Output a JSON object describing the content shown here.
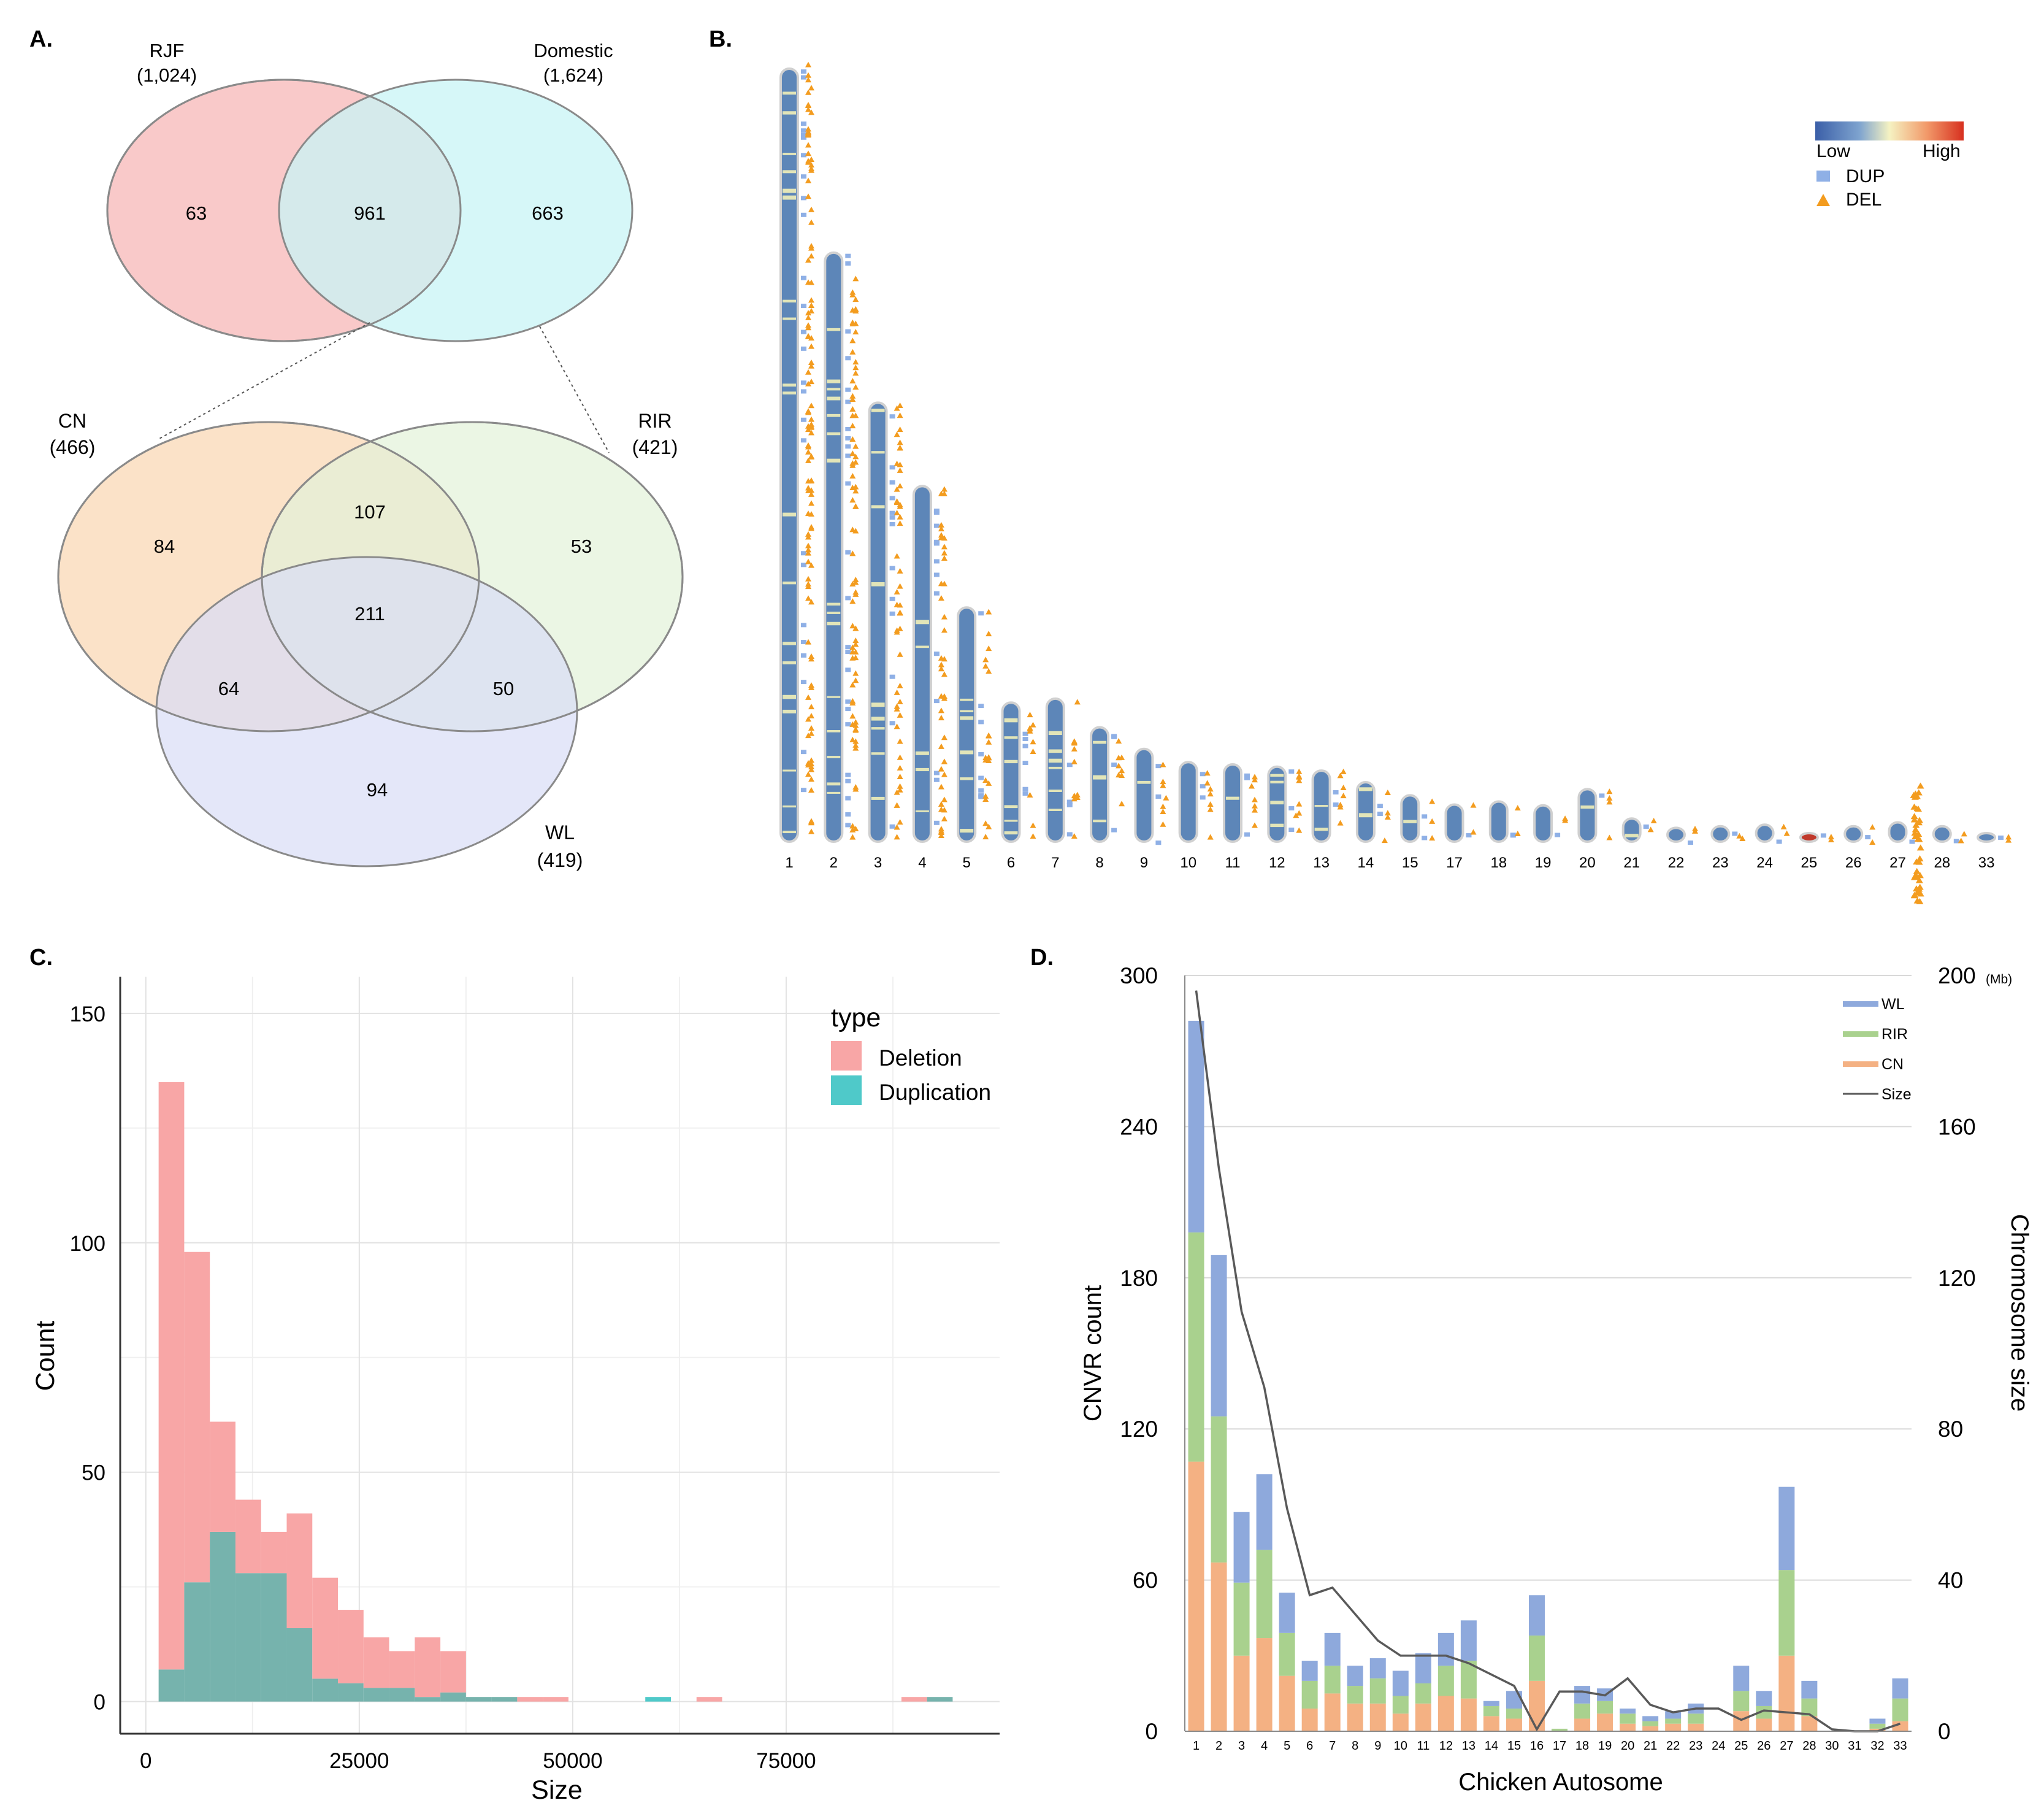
{
  "panels": {
    "a": {
      "label": "A.",
      "top_venn": {
        "sets": [
          {
            "name": "RJF",
            "count": "(1,024)",
            "color": "#f9c9c9"
          },
          {
            "name": "Domestic",
            "count": "(1,624)",
            "color": "#c8f4f6"
          }
        ],
        "regions": {
          "rjf_only": "63",
          "shared": "961",
          "domestic_only": "663"
        }
      },
      "bottom_venn": {
        "sets": [
          {
            "name": "CN",
            "count": "(466)",
            "color": "#fbe2c8"
          },
          {
            "name": "RIR",
            "count": "(421)",
            "color": "#e2f2d9"
          },
          {
            "name": "WL",
            "count": "(419)",
            "color": "#d9ddf7"
          }
        ],
        "regions": {
          "cn_only": "84",
          "cn_rir": "107",
          "rir_only": "53",
          "all": "211",
          "cn_wl": "64",
          "rir_wl": "50",
          "wl_only": "94"
        }
      }
    },
    "b": {
      "label": "B.",
      "legend": {
        "low": "Low",
        "high": "High",
        "dup": "DUP",
        "del": "DEL"
      },
      "colors": {
        "dup": "#8fb0e6",
        "del": "#f39c1f",
        "chrom": "#5d86b8",
        "band": "#f1efb8",
        "rim": "#d0d0d0"
      },
      "chromosomes": [
        {
          "label": "1",
          "length": 1.0,
          "dup": 0.5,
          "del": 1.0
        },
        {
          "label": "2",
          "length": 0.762,
          "dup": 0.6,
          "del": 0.9
        },
        {
          "label": "3",
          "length": 0.568,
          "dup": 0.45,
          "del": 0.8
        },
        {
          "label": "4",
          "length": 0.46,
          "dup": 0.55,
          "del": 0.8
        },
        {
          "label": "5",
          "length": 0.303,
          "dup": 0.5,
          "del": 0.6
        },
        {
          "label": "6",
          "length": 0.18,
          "dup": 0.6,
          "del": 0.5
        },
        {
          "label": "7",
          "length": 0.185,
          "dup": 0.4,
          "del": 0.5
        },
        {
          "label": "8",
          "length": 0.148,
          "dup": 0.5,
          "del": 0.5
        },
        {
          "label": "9",
          "length": 0.12,
          "dup": 0.4,
          "del": 0.5
        },
        {
          "label": "10",
          "length": 0.103,
          "dup": 0.6,
          "del": 0.6
        },
        {
          "label": "11",
          "length": 0.1,
          "dup": 0.6,
          "del": 0.6
        },
        {
          "label": "12",
          "length": 0.097,
          "dup": 0.5,
          "del": 0.7
        },
        {
          "label": "13",
          "length": 0.092,
          "dup": 0.5,
          "del": 0.7
        },
        {
          "label": "14",
          "length": 0.077,
          "dup": 0.5,
          "del": 0.4
        },
        {
          "label": "15",
          "length": 0.06,
          "dup": 0.5,
          "del": 0.5
        },
        {
          "label": "17",
          "length": 0.048,
          "dup": 0.3,
          "del": 0.3
        },
        {
          "label": "18",
          "length": 0.052,
          "dup": 0.6,
          "del": 0.4
        },
        {
          "label": "19",
          "length": 0.047,
          "dup": 0.5,
          "del": 0.4
        },
        {
          "label": "20",
          "length": 0.068,
          "dup": 0.4,
          "del": 0.5
        },
        {
          "label": "21",
          "length": 0.03,
          "dup": 0.3,
          "del": 0.3
        },
        {
          "label": "22",
          "length": 0.018,
          "dup": 0.3,
          "del": 0.3
        },
        {
          "label": "23",
          "length": 0.02,
          "dup": 0.3,
          "del": 0.3
        },
        {
          "label": "24",
          "length": 0.022,
          "dup": 0.3,
          "del": 0.3
        },
        {
          "label": "25",
          "length": 0.01,
          "dup": 0.3,
          "del": 0.4
        },
        {
          "label": "26",
          "length": 0.02,
          "dup": 0.4,
          "del": 0.4
        },
        {
          "label": "27",
          "length": 0.025,
          "dup": 0.5,
          "del": 1.0
        },
        {
          "label": "28",
          "length": 0.02,
          "dup": 0.5,
          "del": 0.4
        },
        {
          "label": "33",
          "length": 0.006,
          "dup": 0.3,
          "del": 0.3
        }
      ]
    },
    "c": {
      "label": "C.",
      "legend_title": "type",
      "colors": {
        "deletion": "#f8a6a6",
        "duplication": "#4fc9c9",
        "overlap": "#76b3ad"
      }
    },
    "d": {
      "label": "D.",
      "right_unit": "(Mb)",
      "colors": {
        "WL": "#8ea9dc",
        "RIR": "#a9d18e",
        "CN": "#f4b183",
        "Size": "#595959"
      }
    }
  },
  "chart_data": [
    {
      "panel": "C",
      "type": "bar",
      "title": "",
      "xlabel": "Size",
      "ylabel": "Count",
      "xlim": [
        -3000,
        100000
      ],
      "ylim": [
        -7,
        158
      ],
      "xticks": [
        0,
        25000,
        50000,
        75000
      ],
      "yticks": [
        0,
        50,
        100,
        150
      ],
      "bin_width": 3000,
      "bin_start": 1500,
      "series": [
        {
          "name": "Deletion",
          "values": [
            135,
            98,
            61,
            44,
            37,
            41,
            27,
            20,
            14,
            11,
            14,
            11,
            1,
            1,
            1,
            1,
            0,
            0,
            0,
            0,
            0,
            1,
            0,
            0,
            0,
            0,
            0,
            0,
            0,
            1,
            1
          ]
        },
        {
          "name": "Duplication",
          "values": [
            7,
            26,
            37,
            28,
            28,
            16,
            5,
            4,
            3,
            3,
            1,
            2,
            1,
            1,
            0,
            0,
            0,
            0,
            0,
            1,
            0,
            0,
            0,
            0,
            0,
            0,
            0,
            0,
            0,
            0,
            1
          ]
        }
      ]
    },
    {
      "panel": "D",
      "type": "bar",
      "stacked": true,
      "title": "",
      "xlabel": "Chicken Autosome",
      "ylabel": "CNVR count",
      "y2label": "Chromosome size",
      "ylim": [
        0,
        300
      ],
      "y2lim": [
        0,
        200
      ],
      "yticks": [
        0,
        60,
        120,
        180,
        240,
        300
      ],
      "y2ticks": [
        0,
        40,
        80,
        120,
        160,
        200
      ],
      "categories": [
        "1",
        "2",
        "3",
        "4",
        "5",
        "6",
        "7",
        "8",
        "9",
        "10",
        "11",
        "12",
        "13",
        "14",
        "15",
        "16",
        "17",
        "18",
        "19",
        "20",
        "21",
        "22",
        "23",
        "24",
        "25",
        "26",
        "27",
        "28",
        "30",
        "31",
        "32",
        "33"
      ],
      "series": [
        {
          "name": "CN",
          "values": [
            107,
            67,
            30,
            37,
            22,
            9,
            15,
            11,
            11,
            7,
            11,
            14,
            13,
            6,
            5,
            20,
            0,
            5,
            7,
            3,
            2,
            3,
            3,
            0,
            8,
            5,
            30,
            6,
            0,
            0,
            1,
            4
          ]
        },
        {
          "name": "RIR",
          "values": [
            91,
            58,
            29,
            35,
            17,
            11,
            11,
            7,
            10,
            7,
            8,
            12,
            15,
            4,
            4,
            18,
            1,
            6,
            5,
            4,
            2,
            2,
            4,
            0,
            8,
            5,
            34,
            7,
            0,
            0,
            2,
            9
          ]
        },
        {
          "name": "WL",
          "values": [
            84,
            64,
            28,
            30,
            16,
            8,
            13,
            8,
            8,
            10,
            12,
            13,
            16,
            2,
            7,
            16,
            0,
            7,
            5,
            2,
            2,
            3,
            4,
            0,
            10,
            6,
            33,
            7,
            0,
            0,
            2,
            8
          ]
        }
      ],
      "line": {
        "name": "Size",
        "values": [
          196,
          149,
          111,
          91,
          59,
          36,
          38,
          31,
          24,
          20,
          20,
          20,
          18,
          15,
          12,
          0.5,
          10.5,
          10.5,
          9.5,
          14,
          7,
          5,
          6,
          6,
          3,
          5.5,
          5,
          4.5,
          0.5,
          0,
          0,
          2
        ]
      }
    }
  ]
}
